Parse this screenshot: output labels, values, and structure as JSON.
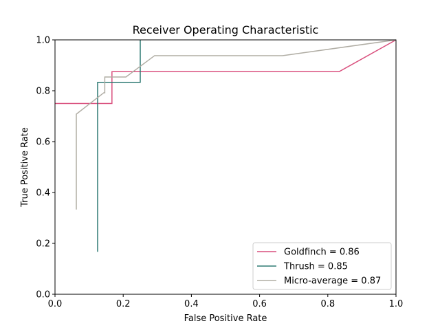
{
  "chart_data": {
    "type": "line",
    "title": "Receiver Operating Characteristic",
    "xlabel": "False Positive Rate",
    "ylabel": "True Positive Rate",
    "xlim": [
      0,
      1
    ],
    "ylim": [
      0,
      1
    ],
    "xticks": [
      "0.0",
      "0.2",
      "0.4",
      "0.6",
      "0.8",
      "1.0"
    ],
    "yticks": [
      "0.0",
      "0.2",
      "0.4",
      "0.6",
      "0.8",
      "1.0"
    ],
    "grid": false,
    "legend_position": "bottom-right",
    "series": [
      {
        "name": "Goldfinch = 0.86",
        "color": "#d94f7d",
        "x": [
          0.0,
          0.167,
          0.167,
          0.833,
          1.0
        ],
        "y": [
          0.75,
          0.75,
          0.875,
          0.875,
          1.0
        ]
      },
      {
        "name": "Thrush = 0.85",
        "color": "#2e7a73",
        "x": [
          0.125,
          0.125,
          0.25,
          0.25
        ],
        "y": [
          0.167,
          0.833,
          0.833,
          1.0
        ]
      },
      {
        "name": "Micro-average = 0.87",
        "color": "#b0ada4",
        "x": [
          0.0625,
          0.0625,
          0.143,
          0.146,
          0.146,
          0.208,
          0.292,
          0.667,
          1.0
        ],
        "y": [
          0.333,
          0.708,
          0.792,
          0.792,
          0.854,
          0.854,
          0.938,
          0.938,
          1.0
        ]
      }
    ]
  }
}
